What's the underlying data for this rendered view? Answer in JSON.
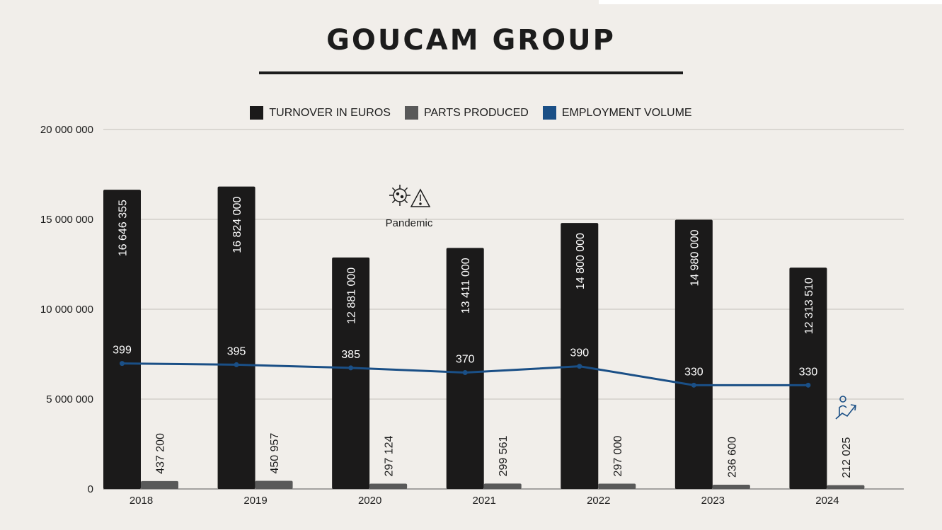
{
  "title": "GOUCAM GROUP",
  "colors": {
    "turnover": "#1b1a1a",
    "parts": "#595959",
    "employment": "#1a4f86",
    "grid": "#c4c0ba",
    "axis": "#555555",
    "background": "#f1eeea"
  },
  "annotation": {
    "label": "Pandemic",
    "icon": "virus-warning-icon"
  },
  "employment_icon": "person-growth-icon",
  "chart_data": {
    "type": "bar",
    "categories": [
      "2018",
      "2019",
      "2020",
      "2021",
      "2022",
      "2023",
      "2024"
    ],
    "ylim": [
      0,
      20000000
    ],
    "yticks": [
      0,
      5000000,
      10000000,
      15000000,
      20000000
    ],
    "ytick_labels": [
      "0",
      "5 000 000",
      "10 000 000",
      "15 000 000",
      "20 000 000"
    ],
    "grid": true,
    "legend_position": "top-center",
    "series": [
      {
        "name": "TURNOVER IN EUROS",
        "type": "bar",
        "values": [
          16646355,
          16824000,
          12881000,
          13411000,
          14800000,
          14980000,
          12313510
        ],
        "labels": [
          "16 646 355",
          "16 824 000",
          "12 881 000",
          "13 411 000",
          "14 800 000",
          "14 980 000",
          "12 313 510"
        ]
      },
      {
        "name": "PARTS PRODUCED",
        "type": "bar",
        "values": [
          437200,
          450957,
          297124,
          299561,
          297000,
          236600,
          212025
        ],
        "labels": [
          "437 200",
          "450 957",
          "297 124",
          "299 561",
          "297 000",
          "236 600",
          "212 025"
        ]
      },
      {
        "name": "EMPLOYMENT VOLUME",
        "type": "line",
        "values": [
          399,
          395,
          385,
          370,
          390,
          330,
          330
        ],
        "labels": [
          "399",
          "395",
          "385",
          "370",
          "390",
          "330",
          "330"
        ],
        "points_on_chart": 6
      }
    ]
  }
}
